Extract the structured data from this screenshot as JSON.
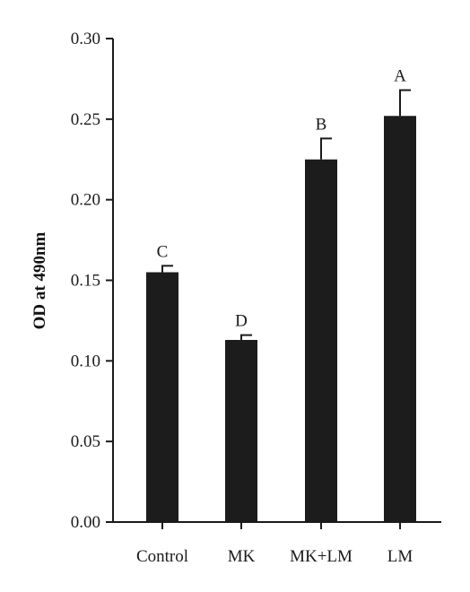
{
  "chart_data": {
    "type": "bar",
    "title": "",
    "xlabel": "",
    "ylabel": "OD at 490nm",
    "ylim": [
      0,
      0.3
    ],
    "yticks": [
      "0.00",
      "0.05",
      "0.10",
      "0.15",
      "0.20",
      "0.25",
      "0.30"
    ],
    "categories": [
      "Control",
      "MK",
      "MK+LM",
      "LM"
    ],
    "values": [
      0.155,
      0.113,
      0.225,
      0.252
    ],
    "errors": [
      0.004,
      0.003,
      0.013,
      0.016
    ],
    "significance_labels": [
      "C",
      "D",
      "B",
      "A"
    ],
    "bar_color": "#1c1c1c",
    "grid": false,
    "legend": "none"
  }
}
